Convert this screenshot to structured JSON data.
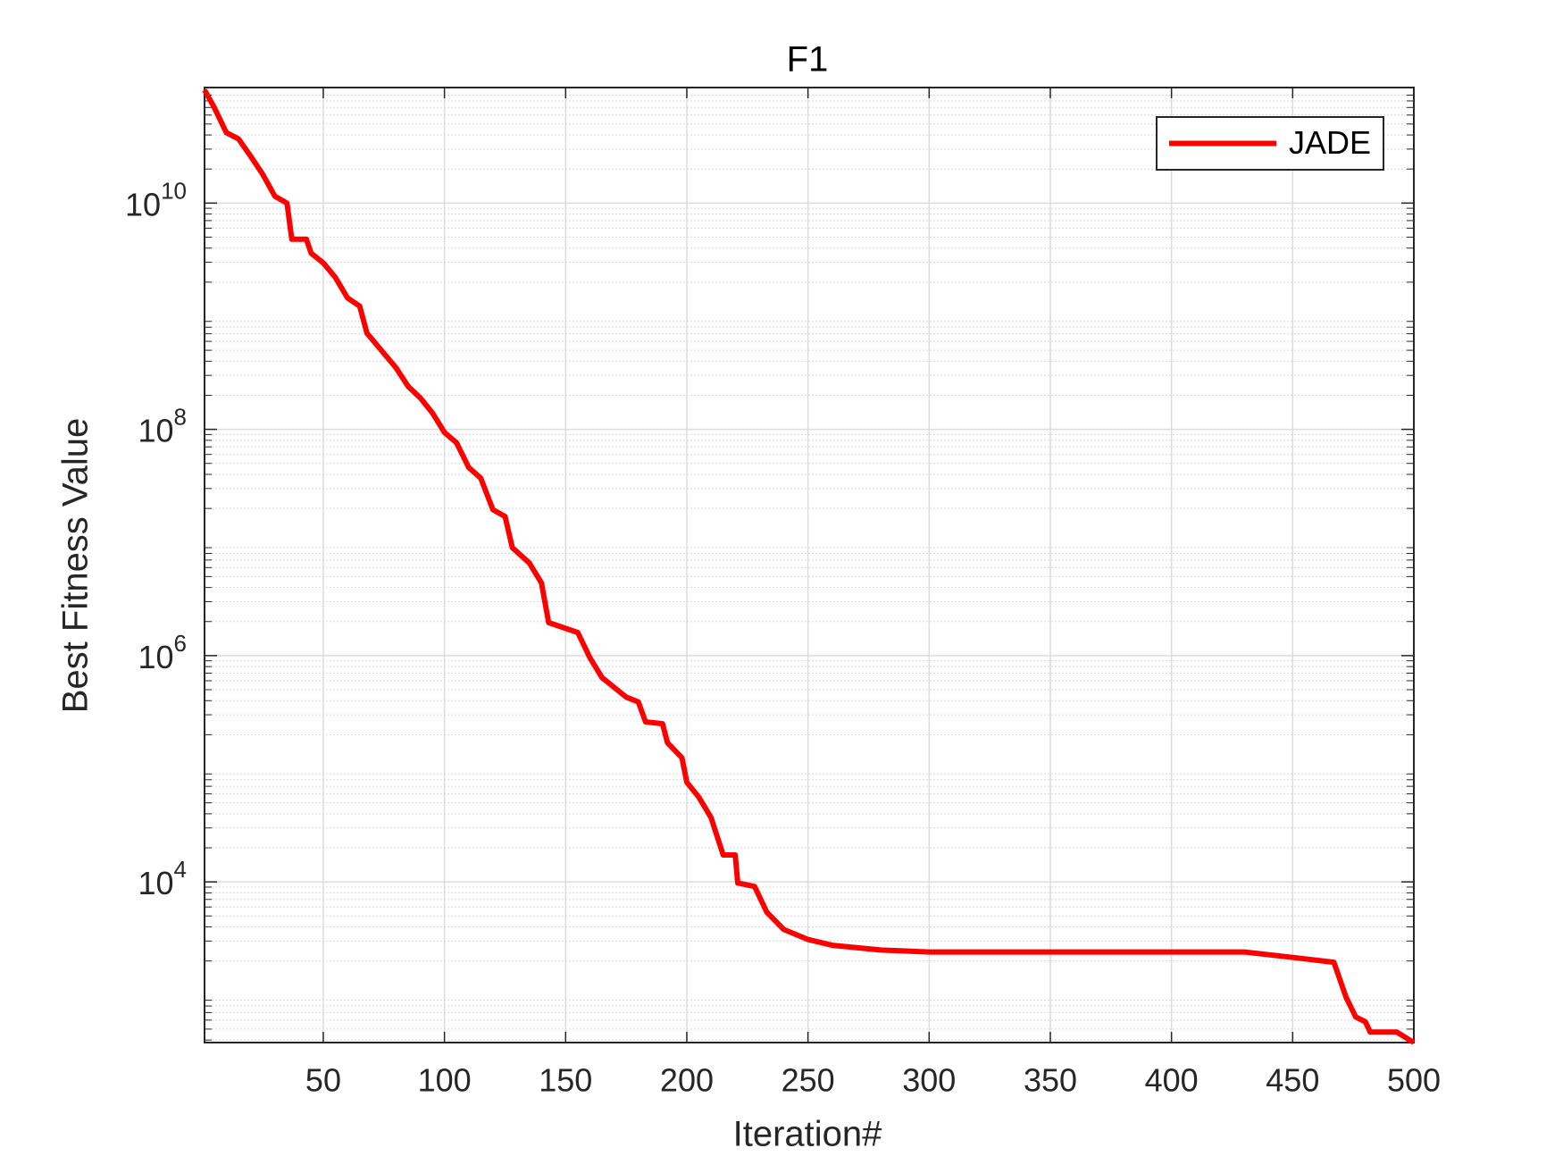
{
  "chart_data": {
    "type": "line",
    "title": "F1",
    "xlabel": "Iteration#",
    "ylabel": "Best Fitness Value",
    "yscale": "log",
    "grid": true,
    "minor_grid": true,
    "legend": "upper right",
    "xlim": [
      1,
      500
    ],
    "ylim": [
      380,
      105000000000
    ],
    "xticks": [
      50,
      100,
      150,
      200,
      250,
      300,
      350,
      400,
      450,
      500
    ],
    "yticks": [
      {
        "value": 10000,
        "label": "10",
        "exponent": "4"
      },
      {
        "value": 1000000,
        "label": "10",
        "exponent": "6"
      },
      {
        "value": 100000000,
        "label": "10",
        "exponent": "8"
      },
      {
        "value": 10000000000,
        "label": "10",
        "exponent": "10"
      }
    ],
    "series": [
      {
        "name": "JADE",
        "color": "#ff0000",
        "x": [
          1,
          5,
          10,
          15,
          20,
          25,
          30,
          35,
          37,
          43,
          45,
          50,
          55,
          60,
          65,
          68,
          75,
          80,
          85,
          90,
          95,
          100,
          105,
          110,
          115,
          120,
          125,
          128,
          135,
          140,
          143,
          155,
          160,
          165,
          175,
          180,
          183,
          190,
          192,
          198,
          200,
          205,
          210,
          215,
          220,
          221,
          228,
          233,
          240,
          250,
          260,
          280,
          300,
          430,
          450,
          467,
          472,
          476,
          480,
          482,
          493,
          500
        ],
        "values": [
          100000000000,
          70000000000,
          42000000000,
          37000000000,
          26000000000,
          18000000000,
          11500000000,
          10000000000,
          4800000000,
          4800000000,
          3600000000,
          2960000000,
          2200000000,
          1450000000,
          1230000000,
          710000000,
          470000000,
          350000000,
          240000000,
          190000000,
          140000000,
          94000000,
          76000000,
          46000000,
          37000000,
          19500000,
          17000000,
          9000000,
          6600000,
          4400000,
          1960000,
          1600000,
          960000,
          640000,
          430000,
          390000,
          260000,
          250000,
          170000,
          125000,
          76000,
          56000,
          37000,
          17300,
          17300,
          9800,
          9100,
          5400,
          3800,
          3100,
          2750,
          2500,
          2400,
          2400,
          2150,
          1950,
          960,
          640,
          580,
          470,
          470,
          380
        ]
      }
    ]
  }
}
